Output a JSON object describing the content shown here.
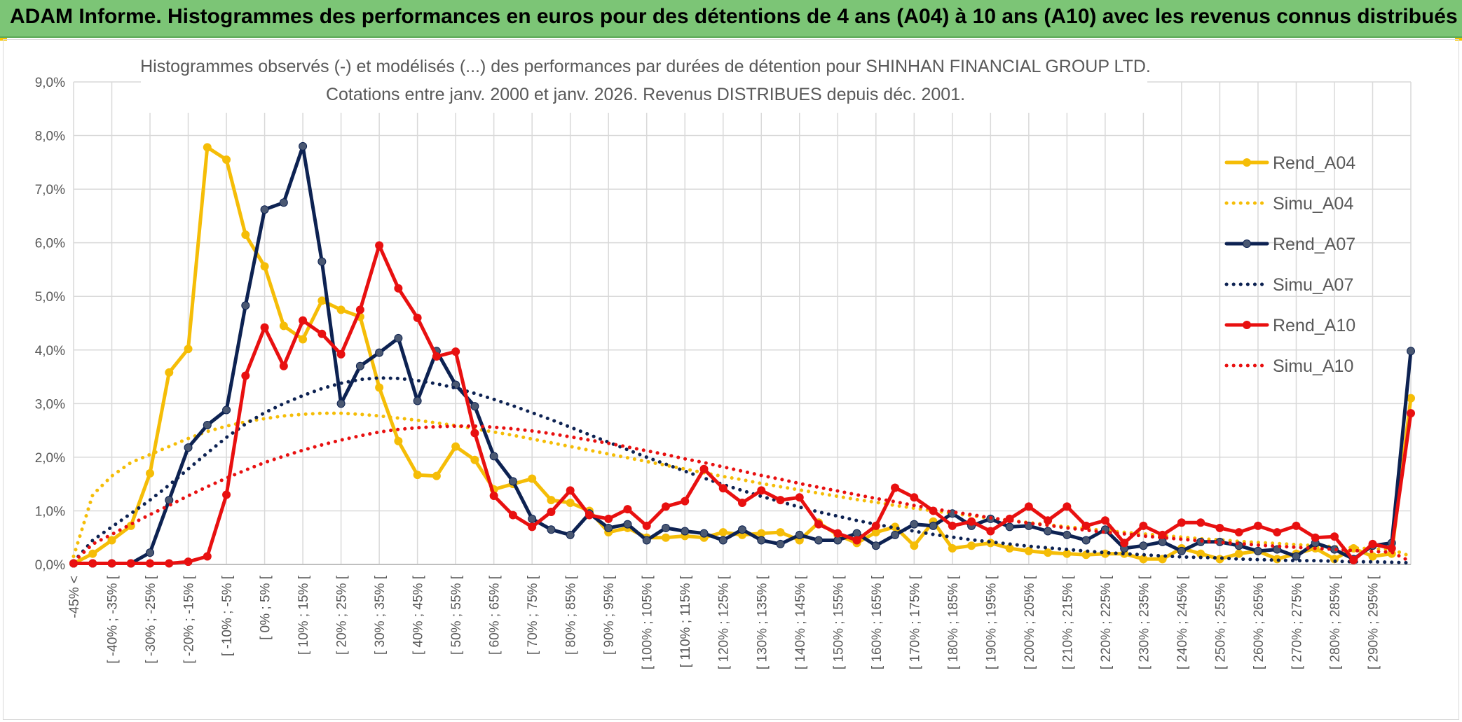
{
  "banner": {
    "title": "ADAM Informe. Histogrammes des performances en euros pour des détentions de 4 ans (A04) à 10 ans (A10) avec les revenus connus distribués"
  },
  "chart_data": {
    "type": "line",
    "title": "Histogrammes observés (-) et modélisés (...) des performances par durées de détention pour SHINHAN FINANCIAL GROUP LTD.",
    "subtitle": "Cotations entre janv. 2000 et janv. 2026. Revenus DISTRIBUES depuis déc. 2001.",
    "xlabel": "",
    "ylabel": "",
    "ylim": [
      0,
      9
    ],
    "yticks": [
      "0,0%",
      "1,0%",
      "2,0%",
      "3,0%",
      "4,0%",
      "5,0%",
      "6,0%",
      "7,0%",
      "8,0%",
      "9,0%"
    ],
    "grid": true,
    "legend_position": "right",
    "x_labels": [
      "-45% <",
      "[ -40% ; -35% [",
      "[ -30% ; -25% [",
      "[ -20% ; -15% [",
      "[ -10% ; -5% [",
      "[ 0% ; 5% [",
      "[ 10% ; 15% [",
      "[ 20% ; 25% [",
      "[ 30% ; 35% [",
      "[ 40% ; 45% [",
      "[ 50% ; 55% [",
      "[ 60% ; 65% [",
      "[ 70% ; 75% [",
      "[ 80% ; 85% [",
      "[ 90% ; 95% [",
      "[ 100% ; 105% [",
      "[ 110% ; 115% [",
      "[ 120% ; 125% [",
      "[ 130% ; 135% [",
      "[ 140% ; 145% [",
      "[ 150% ; 155% [",
      "[ 160% ; 165% [",
      "[ 170% ; 175% [",
      "[ 180% ; 185% [",
      "[ 190% ; 195% [",
      "[ 200% ; 205% [",
      "[ 210% ; 215% [",
      "[ 220% ; 225% [",
      "[ 230% ; 235% [",
      "[ 240% ; 245% [",
      "[ 250% ; 255% [",
      "[ 260% ; 265% [",
      "[ 270% ; 275% [",
      "[ 280% ; 285% [",
      "[ 290% ; 295% ["
    ],
    "series": [
      {
        "name": "Rend_A04",
        "style": "solid",
        "color": "#f5bd07",
        "markers": true,
        "values": [
          0.02,
          0.2,
          0.45,
          0.72,
          1.7,
          3.58,
          4.02,
          7.78,
          7.55,
          6.15,
          5.56,
          4.45,
          4.2,
          4.92,
          4.75,
          4.62,
          3.3,
          2.3,
          1.67,
          1.65,
          2.2,
          1.95,
          1.4,
          1.5,
          1.6,
          1.2,
          1.15,
          1.0,
          0.6,
          0.68,
          0.5,
          0.5,
          0.53,
          0.5,
          0.6,
          0.55,
          0.58,
          0.6,
          0.45,
          0.78,
          0.55,
          0.4,
          0.6,
          0.7,
          0.35,
          0.8,
          0.3,
          0.35,
          0.4,
          0.3,
          0.25,
          0.22,
          0.2,
          0.18,
          0.2,
          0.2,
          0.1,
          0.1,
          0.3,
          0.2,
          0.1,
          0.2,
          0.25,
          0.1,
          0.2,
          0.3,
          0.1,
          0.3,
          0.15,
          0.2,
          3.1
        ]
      },
      {
        "name": "Simu_A04",
        "style": "dotted",
        "color": "#f5bd07",
        "markers": false,
        "values": [
          0.15,
          1.3,
          1.65,
          1.9,
          2.05,
          2.2,
          2.35,
          2.48,
          2.58,
          2.66,
          2.72,
          2.77,
          2.8,
          2.82,
          2.82,
          2.8,
          2.77,
          2.73,
          2.69,
          2.64,
          2.59,
          2.53,
          2.47,
          2.41,
          2.34,
          2.27,
          2.2,
          2.13,
          2.06,
          1.99,
          1.92,
          1.85,
          1.78,
          1.71,
          1.64,
          1.58,
          1.51,
          1.45,
          1.39,
          1.33,
          1.27,
          1.21,
          1.16,
          1.1,
          1.05,
          1.0,
          0.95,
          0.91,
          0.86,
          0.82,
          0.78,
          0.74,
          0.7,
          0.67,
          0.63,
          0.6,
          0.57,
          0.54,
          0.51,
          0.48,
          0.46,
          0.43,
          0.41,
          0.39,
          0.37,
          0.35,
          0.33,
          0.31,
          0.29,
          0.28,
          0.15
        ]
      },
      {
        "name": "Rend_A07",
        "style": "solid",
        "color": "#0d2252",
        "markers": true,
        "values": [
          0.02,
          0.02,
          0.02,
          0.02,
          0.22,
          1.2,
          2.18,
          2.6,
          2.88,
          4.83,
          6.62,
          6.75,
          7.8,
          5.65,
          3.0,
          3.7,
          3.95,
          4.22,
          3.05,
          3.98,
          3.35,
          2.95,
          2.02,
          1.55,
          0.85,
          0.65,
          0.55,
          0.95,
          0.68,
          0.75,
          0.45,
          0.68,
          0.62,
          0.58,
          0.45,
          0.65,
          0.45,
          0.38,
          0.55,
          0.45,
          0.45,
          0.58,
          0.35,
          0.55,
          0.75,
          0.72,
          0.95,
          0.72,
          0.85,
          0.7,
          0.72,
          0.62,
          0.55,
          0.45,
          0.65,
          0.3,
          0.35,
          0.42,
          0.25,
          0.42,
          0.42,
          0.35,
          0.25,
          0.28,
          0.15,
          0.4,
          0.28,
          0.1,
          0.35,
          0.4,
          3.98
        ]
      },
      {
        "name": "Simu_A07",
        "style": "dotted",
        "color": "#0d2252",
        "markers": false,
        "values": [
          0.05,
          0.45,
          0.7,
          0.95,
          1.2,
          1.48,
          1.78,
          2.08,
          2.37,
          2.62,
          2.83,
          3.0,
          3.15,
          3.28,
          3.38,
          3.45,
          3.48,
          3.47,
          3.43,
          3.37,
          3.29,
          3.19,
          3.08,
          2.96,
          2.83,
          2.7,
          2.56,
          2.42,
          2.28,
          2.14,
          2.0,
          1.87,
          1.74,
          1.61,
          1.49,
          1.38,
          1.27,
          1.17,
          1.07,
          0.98,
          0.9,
          0.82,
          0.75,
          0.68,
          0.62,
          0.56,
          0.51,
          0.46,
          0.42,
          0.38,
          0.34,
          0.31,
          0.28,
          0.25,
          0.22,
          0.2,
          0.18,
          0.16,
          0.14,
          0.13,
          0.12,
          0.1,
          0.09,
          0.08,
          0.07,
          0.07,
          0.06,
          0.05,
          0.05,
          0.04,
          0.03
        ]
      },
      {
        "name": "Rend_A10",
        "style": "solid",
        "color": "#e81010",
        "markers": true,
        "values": [
          0.02,
          0.02,
          0.02,
          0.02,
          0.02,
          0.02,
          0.05,
          0.15,
          1.3,
          3.52,
          4.42,
          3.7,
          4.55,
          4.3,
          3.92,
          4.75,
          5.95,
          5.15,
          4.6,
          3.88,
          3.97,
          2.45,
          1.28,
          0.92,
          0.7,
          0.98,
          1.38,
          0.92,
          0.85,
          1.03,
          0.72,
          1.08,
          1.18,
          1.78,
          1.42,
          1.15,
          1.38,
          1.2,
          1.25,
          0.75,
          0.58,
          0.45,
          0.72,
          1.43,
          1.25,
          1.0,
          0.72,
          0.8,
          0.62,
          0.85,
          1.08,
          0.82,
          1.08,
          0.72,
          0.82,
          0.4,
          0.72,
          0.55,
          0.78,
          0.78,
          0.68,
          0.6,
          0.72,
          0.6,
          0.72,
          0.5,
          0.52,
          0.08,
          0.38,
          0.3,
          2.82
        ]
      },
      {
        "name": "Simu_A10",
        "style": "dotted",
        "color": "#e81010",
        "markers": false,
        "values": [
          0.05,
          0.38,
          0.56,
          0.75,
          0.93,
          1.1,
          1.28,
          1.45,
          1.61,
          1.76,
          1.9,
          2.02,
          2.13,
          2.23,
          2.32,
          2.4,
          2.47,
          2.52,
          2.55,
          2.57,
          2.58,
          2.58,
          2.56,
          2.53,
          2.49,
          2.44,
          2.38,
          2.32,
          2.26,
          2.19,
          2.12,
          2.05,
          1.97,
          1.9,
          1.82,
          1.74,
          1.66,
          1.59,
          1.51,
          1.44,
          1.37,
          1.3,
          1.23,
          1.17,
          1.1,
          1.04,
          0.98,
          0.93,
          0.87,
          0.82,
          0.77,
          0.73,
          0.68,
          0.64,
          0.6,
          0.57,
          0.53,
          0.5,
          0.47,
          0.44,
          0.41,
          0.39,
          0.36,
          0.34,
          0.32,
          0.3,
          0.28,
          0.26,
          0.24,
          0.23,
          0.05
        ]
      }
    ]
  }
}
